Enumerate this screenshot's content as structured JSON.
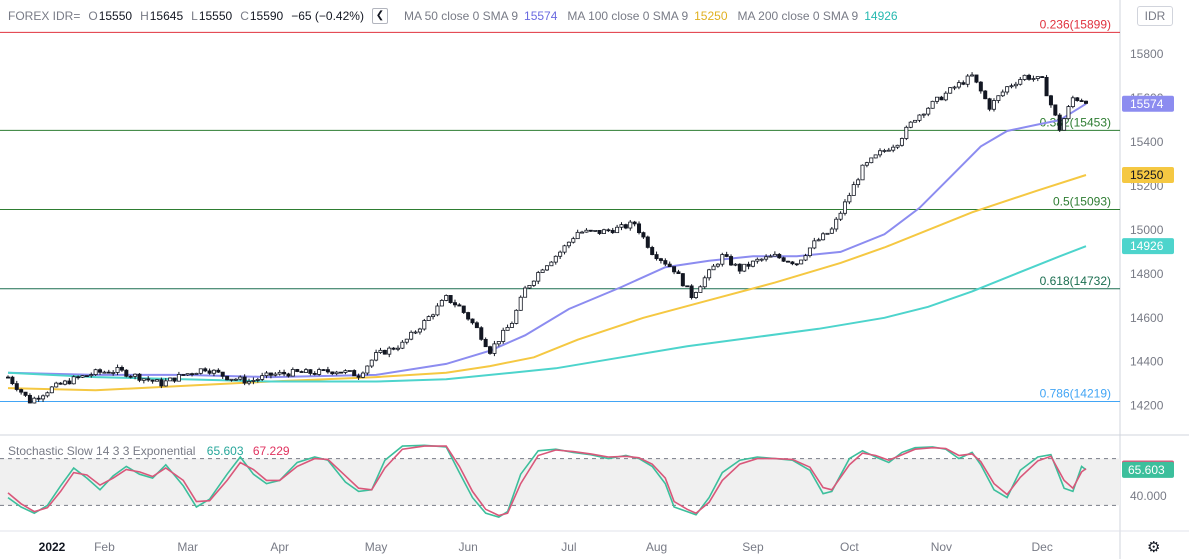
{
  "header": {
    "symbol": "FOREX IDR=",
    "open_key": "O",
    "open": "15550",
    "high_key": "H",
    "high": "15645",
    "low_key": "L",
    "low": "15550",
    "close_key": "C",
    "close": "15590",
    "change": "−65 (−0.42%)",
    "collapse_icon": "chevron-left-icon",
    "ma50_label": "MA 50 close 0 SMA 9",
    "ma50_value": "15574",
    "ma100_label": "MA 100 close 0 SMA 9",
    "ma100_value": "15250",
    "ma200_label": "MA 200 close 0 SMA 9",
    "ma200_value": "14926"
  },
  "currency_button": "IDR",
  "stochastic": {
    "label": "Stochastic Slow 14 3 3 Exponential",
    "k_value": "65.603",
    "d_value": "67.229",
    "axis_label": "40.000"
  },
  "colors": {
    "ma50": "#8c8cf0",
    "ma100": "#f5c842",
    "ma200": "#4dd4cc",
    "stoch_k": "#3cbf9c",
    "stoch_d": "#d9577a",
    "fib236": "#e0323e",
    "fib382": "#2e7d32",
    "fib5": "#2e7d32",
    "fib618": "#1b6e50",
    "fib786": "#42a5f5",
    "last_price": "#131722"
  },
  "chart_data": {
    "type": "candlestick",
    "y_ticks": [
      14200,
      14400,
      14600,
      14800,
      15000,
      15200,
      15400,
      15600,
      15800
    ],
    "ylim": [
      14080,
      15910
    ],
    "x_ticks": [
      "2022",
      "Feb",
      "Mar",
      "Apr",
      "May",
      "Jun",
      "Jul",
      "Aug",
      "Sep",
      "Oct",
      "Nov",
      "Dec"
    ],
    "x_tick_positions": [
      0,
      22,
      41,
      62,
      84,
      105,
      128,
      148,
      170,
      192,
      213,
      236
    ],
    "bars_total": 247,
    "price_path": [
      [
        0,
        14330
      ],
      [
        5,
        14220
      ],
      [
        10,
        14280
      ],
      [
        15,
        14320
      ],
      [
        20,
        14350
      ],
      [
        25,
        14360
      ],
      [
        30,
        14330
      ],
      [
        35,
        14300
      ],
      [
        40,
        14340
      ],
      [
        45,
        14370
      ],
      [
        50,
        14330
      ],
      [
        55,
        14310
      ],
      [
        60,
        14340
      ],
      [
        65,
        14350
      ],
      [
        70,
        14350
      ],
      [
        75,
        14360
      ],
      [
        80,
        14340
      ],
      [
        84,
        14430
      ],
      [
        90,
        14480
      ],
      [
        95,
        14580
      ],
      [
        100,
        14690
      ],
      [
        103,
        14650
      ],
      [
        107,
        14550
      ],
      [
        110,
        14450
      ],
      [
        115,
        14580
      ],
      [
        118,
        14730
      ],
      [
        122,
        14830
      ],
      [
        126,
        14900
      ],
      [
        130,
        14990
      ],
      [
        135,
        14990
      ],
      [
        140,
        15010
      ],
      [
        143,
        15030
      ],
      [
        147,
        14900
      ],
      [
        152,
        14820
      ],
      [
        156,
        14700
      ],
      [
        159,
        14780
      ],
      [
        163,
        14880
      ],
      [
        167,
        14820
      ],
      [
        171,
        14860
      ],
      [
        175,
        14880
      ],
      [
        180,
        14850
      ],
      [
        184,
        14940
      ],
      [
        188,
        15000
      ],
      [
        191,
        15120
      ],
      [
        195,
        15280
      ],
      [
        199,
        15350
      ],
      [
        203,
        15400
      ],
      [
        207,
        15510
      ],
      [
        212,
        15590
      ],
      [
        216,
        15650
      ],
      [
        220,
        15700
      ],
      [
        224,
        15560
      ],
      [
        228,
        15650
      ],
      [
        232,
        15700
      ],
      [
        236,
        15680
      ],
      [
        240,
        15460
      ],
      [
        243,
        15600
      ],
      [
        246,
        15590
      ]
    ],
    "series": [
      {
        "name": "MA 50 close 0 SMA 9",
        "values": [
          [
            0,
            14350
          ],
          [
            20,
            14340
          ],
          [
            40,
            14340
          ],
          [
            60,
            14330
          ],
          [
            84,
            14340
          ],
          [
            100,
            14390
          ],
          [
            110,
            14450
          ],
          [
            118,
            14520
          ],
          [
            128,
            14640
          ],
          [
            140,
            14740
          ],
          [
            150,
            14830
          ],
          [
            160,
            14860
          ],
          [
            170,
            14880
          ],
          [
            180,
            14880
          ],
          [
            190,
            14900
          ],
          [
            200,
            14980
          ],
          [
            208,
            15100
          ],
          [
            215,
            15240
          ],
          [
            222,
            15380
          ],
          [
            228,
            15450
          ],
          [
            235,
            15480
          ],
          [
            240,
            15500
          ],
          [
            246,
            15574
          ]
        ]
      },
      {
        "name": "MA 100 close 0 SMA 9",
        "values": [
          [
            0,
            14280
          ],
          [
            20,
            14270
          ],
          [
            40,
            14290
          ],
          [
            60,
            14310
          ],
          [
            84,
            14330
          ],
          [
            100,
            14350
          ],
          [
            110,
            14380
          ],
          [
            120,
            14420
          ],
          [
            130,
            14500
          ],
          [
            145,
            14600
          ],
          [
            160,
            14680
          ],
          [
            175,
            14760
          ],
          [
            190,
            14850
          ],
          [
            200,
            14920
          ],
          [
            210,
            15000
          ],
          [
            220,
            15080
          ],
          [
            235,
            15180
          ],
          [
            246,
            15250
          ]
        ]
      },
      {
        "name": "MA 200 close 0 SMA 9",
        "values": [
          [
            0,
            14350
          ],
          [
            20,
            14330
          ],
          [
            40,
            14320
          ],
          [
            60,
            14310
          ],
          [
            84,
            14310
          ],
          [
            100,
            14320
          ],
          [
            115,
            14350
          ],
          [
            125,
            14370
          ],
          [
            140,
            14420
          ],
          [
            155,
            14470
          ],
          [
            170,
            14510
          ],
          [
            185,
            14550
          ],
          [
            200,
            14600
          ],
          [
            210,
            14650
          ],
          [
            220,
            14720
          ],
          [
            230,
            14800
          ],
          [
            240,
            14880
          ],
          [
            246,
            14926
          ]
        ]
      }
    ],
    "fib_levels": [
      {
        "label": "0.236(15899)",
        "value": 15899
      },
      {
        "label": "0.382(15453)",
        "value": 15453
      },
      {
        "label": "0.5(15093)",
        "value": 15093
      },
      {
        "label": "0.618(14732)",
        "value": 14732
      },
      {
        "label": "0.786(14219)",
        "value": 14219
      }
    ],
    "last_price_label": "15590",
    "last_price": 15590,
    "price_labels": [
      {
        "label": "15574",
        "value": 15574,
        "color_key": "ma50"
      },
      {
        "label": "15250",
        "value": 15250,
        "color_key": "ma100"
      },
      {
        "label": "14926",
        "value": 14926,
        "color_key": "ma200"
      }
    ],
    "stochastic": {
      "ylim": [
        0,
        100
      ],
      "bands": [
        80,
        20
      ],
      "k_last": 65.603,
      "d_last": 67.229,
      "k_path": [
        [
          0,
          30
        ],
        [
          3,
          18
        ],
        [
          6,
          10
        ],
        [
          9,
          20
        ],
        [
          12,
          45
        ],
        [
          15,
          68
        ],
        [
          18,
          55
        ],
        [
          21,
          40
        ],
        [
          24,
          58
        ],
        [
          27,
          70
        ],
        [
          30,
          60
        ],
        [
          33,
          55
        ],
        [
          36,
          72
        ],
        [
          40,
          45
        ],
        [
          43,
          18
        ],
        [
          46,
          28
        ],
        [
          50,
          60
        ],
        [
          53,
          82
        ],
        [
          56,
          60
        ],
        [
          59,
          48
        ],
        [
          62,
          52
        ],
        [
          66,
          75
        ],
        [
          70,
          82
        ],
        [
          73,
          78
        ],
        [
          77,
          50
        ],
        [
          80,
          38
        ],
        [
          83,
          40
        ],
        [
          86,
          78
        ],
        [
          90,
          96
        ],
        [
          95,
          97
        ],
        [
          100,
          95
        ],
        [
          103,
          62
        ],
        [
          106,
          30
        ],
        [
          109,
          10
        ],
        [
          112,
          5
        ],
        [
          114,
          12
        ],
        [
          117,
          60
        ],
        [
          121,
          90
        ],
        [
          125,
          92
        ],
        [
          129,
          88
        ],
        [
          133,
          85
        ],
        [
          137,
          80
        ],
        [
          141,
          84
        ],
        [
          144,
          80
        ],
        [
          147,
          70
        ],
        [
          150,
          48
        ],
        [
          152,
          18
        ],
        [
          155,
          12
        ],
        [
          157,
          8
        ],
        [
          160,
          30
        ],
        [
          163,
          62
        ],
        [
          167,
          78
        ],
        [
          171,
          82
        ],
        [
          175,
          80
        ],
        [
          179,
          78
        ],
        [
          183,
          65
        ],
        [
          186,
          35
        ],
        [
          188,
          38
        ],
        [
          192,
          80
        ],
        [
          195,
          90
        ],
        [
          198,
          82
        ],
        [
          201,
          75
        ],
        [
          204,
          88
        ],
        [
          207,
          94
        ],
        [
          211,
          95
        ],
        [
          214,
          92
        ],
        [
          217,
          80
        ],
        [
          220,
          88
        ],
        [
          222,
          72
        ],
        [
          225,
          40
        ],
        [
          228,
          30
        ],
        [
          231,
          65
        ],
        [
          235,
          82
        ],
        [
          238,
          85
        ],
        [
          241,
          42
        ],
        [
          243,
          38
        ],
        [
          245,
          70
        ],
        [
          246,
          65.6
        ]
      ],
      "d_path": [
        [
          0,
          36
        ],
        [
          3,
          22
        ],
        [
          6,
          12
        ],
        [
          9,
          17
        ],
        [
          12,
          38
        ],
        [
          15,
          62
        ],
        [
          18,
          59
        ],
        [
          21,
          46
        ],
        [
          24,
          55
        ],
        [
          27,
          66
        ],
        [
          30,
          63
        ],
        [
          33,
          57
        ],
        [
          36,
          68
        ],
        [
          40,
          52
        ],
        [
          43,
          25
        ],
        [
          46,
          26
        ],
        [
          50,
          52
        ],
        [
          53,
          75
        ],
        [
          56,
          66
        ],
        [
          59,
          52
        ],
        [
          62,
          52
        ],
        [
          66,
          70
        ],
        [
          70,
          80
        ],
        [
          73,
          79
        ],
        [
          77,
          58
        ],
        [
          80,
          42
        ],
        [
          83,
          40
        ],
        [
          86,
          68
        ],
        [
          90,
          92
        ],
        [
          95,
          96
        ],
        [
          100,
          96
        ],
        [
          103,
          70
        ],
        [
          106,
          38
        ],
        [
          109,
          15
        ],
        [
          112,
          7
        ],
        [
          114,
          10
        ],
        [
          117,
          48
        ],
        [
          121,
          84
        ],
        [
          125,
          91
        ],
        [
          129,
          89
        ],
        [
          133,
          86
        ],
        [
          137,
          82
        ],
        [
          141,
          83
        ],
        [
          144,
          81
        ],
        [
          147,
          73
        ],
        [
          150,
          55
        ],
        [
          152,
          25
        ],
        [
          155,
          15
        ],
        [
          157,
          10
        ],
        [
          160,
          24
        ],
        [
          163,
          52
        ],
        [
          167,
          73
        ],
        [
          171,
          80
        ],
        [
          175,
          80
        ],
        [
          179,
          79
        ],
        [
          183,
          69
        ],
        [
          186,
          43
        ],
        [
          188,
          40
        ],
        [
          192,
          72
        ],
        [
          195,
          87
        ],
        [
          198,
          84
        ],
        [
          201,
          78
        ],
        [
          204,
          85
        ],
        [
          207,
          92
        ],
        [
          211,
          94
        ],
        [
          214,
          93
        ],
        [
          217,
          84
        ],
        [
          220,
          86
        ],
        [
          222,
          76
        ],
        [
          225,
          48
        ],
        [
          228,
          34
        ],
        [
          231,
          56
        ],
        [
          235,
          77
        ],
        [
          238,
          83
        ],
        [
          241,
          52
        ],
        [
          243,
          42
        ],
        [
          245,
          63
        ],
        [
          246,
          67.2
        ]
      ]
    }
  }
}
